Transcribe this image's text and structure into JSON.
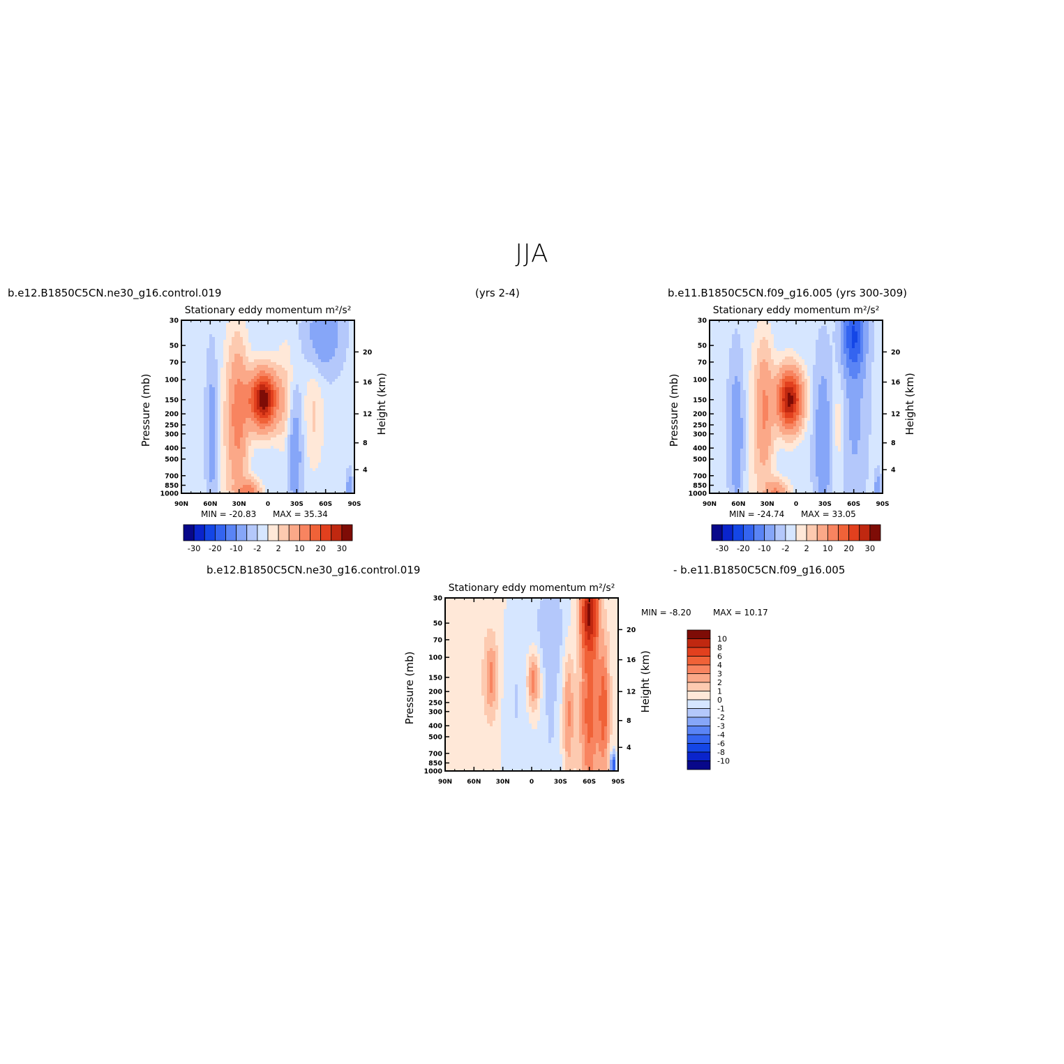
{
  "page": {
    "title": "JJA",
    "case1_label": "b.e12.B1850C5CN.ne30_g16.control.019",
    "case1_years": "(yrs 2-4)",
    "case2_label": "b.e11.B1850C5CN.f09_g16.005 (yrs 300-309)",
    "diff_label_left": "b.e12.B1850C5CN.ne30_g16.control.019",
    "diff_label_right": "- b.e11.B1850C5CN.f09_g16.005"
  },
  "colors": {
    "palette": [
      "#08088a",
      "#0a24cc",
      "#1446e6",
      "#3464f0",
      "#5a84f5",
      "#86a6f8",
      "#b4c8fb",
      "#d6e6ff",
      "#ffe8d8",
      "#fdcab0",
      "#fba888",
      "#f88460",
      "#f06238",
      "#e2401e",
      "#c02810",
      "#7e0c06"
    ]
  },
  "chart_data": [
    {
      "type": "heatmap",
      "name": "panel-left",
      "title": "Stationary eddy momentum",
      "units": "m²/s²",
      "xlabel": "",
      "ylabel": "Pressure (mb)",
      "y2label": "Height (km)",
      "xticks": [
        "90N",
        "60N",
        "30N",
        "0",
        "30S",
        "60S",
        "90S"
      ],
      "yticks": [
        30,
        50,
        70,
        100,
        150,
        200,
        250,
        300,
        400,
        500,
        700,
        850,
        1000
      ],
      "y2ticks": [
        4,
        8,
        12,
        16,
        20
      ],
      "ylim": [
        1000,
        30
      ],
      "ylog": true,
      "min": -20.83,
      "max": 35.34,
      "min_text": "MIN =  -20.83",
      "max_text": "MAX =   35.34",
      "levels": [
        -30,
        -25,
        -20,
        -15,
        -10,
        -5,
        -2,
        0,
        2,
        5,
        10,
        15,
        20,
        25,
        30
      ],
      "colorbar_labels": [
        "-30",
        "-20",
        "-10",
        "-2",
        "2",
        "10",
        "20",
        "30"
      ],
      "features": [
        {
          "lat": 5,
          "p": 150,
          "value": 35.3,
          "sx": 10,
          "sy": 0.38
        },
        {
          "lat": 31,
          "p": 200,
          "value": 12,
          "sx": 7,
          "sy": 0.95
        },
        {
          "lat": -48,
          "p": 200,
          "value": 3.5,
          "sx": 7,
          "sy": 0.8
        },
        {
          "lat": 20,
          "p": 1000,
          "value": 14,
          "sx": 8,
          "sy": 0.18
        },
        {
          "lat": 38,
          "p": 400,
          "value": 2.5,
          "sx": 10,
          "sy": 1.6
        },
        {
          "lat": -20,
          "p": 150,
          "value": 4,
          "sx": 8,
          "sy": 0.8
        },
        {
          "lat": 58,
          "p": 300,
          "value": -7,
          "sx": 4,
          "sy": 1.0
        },
        {
          "lat": -28,
          "p": 400,
          "value": -8,
          "sx": 5,
          "sy": 0.9
        },
        {
          "lat": -58,
          "p": 40,
          "value": -8,
          "sx": 12,
          "sy": 0.5
        },
        {
          "lat": -85,
          "p": 900,
          "value": -9,
          "sx": 2,
          "sy": 0.2
        }
      ],
      "background": -1.2
    },
    {
      "type": "heatmap",
      "name": "panel-right",
      "title": "Stationary eddy momentum",
      "units": "m²/s²",
      "xlabel": "",
      "ylabel": "Pressure (mb)",
      "y2label": "Height (km)",
      "xticks": [
        "90N",
        "60N",
        "30N",
        "0",
        "30S",
        "60S",
        "90S"
      ],
      "yticks": [
        30,
        50,
        70,
        100,
        150,
        200,
        250,
        300,
        400,
        500,
        700,
        850,
        1000
      ],
      "y2ticks": [
        4,
        8,
        12,
        16,
        20
      ],
      "ylim": [
        1000,
        30
      ],
      "ylog": true,
      "min": -24.74,
      "max": 33.05,
      "min_text": "MIN =  -24.74",
      "max_text": "MAX =   33.05",
      "levels": [
        -30,
        -25,
        -20,
        -15,
        -10,
        -5,
        -2,
        0,
        2,
        5,
        10,
        15,
        20,
        25,
        30
      ],
      "colorbar_labels": [
        "-30",
        "-20",
        "-10",
        "-2",
        "2",
        "10",
        "20",
        "30"
      ],
      "features": [
        {
          "lat": 7,
          "p": 150,
          "value": 33,
          "sx": 9,
          "sy": 0.4
        },
        {
          "lat": 33,
          "p": 180,
          "value": 10,
          "sx": 6,
          "sy": 0.85
        },
        {
          "lat": -45,
          "p": 250,
          "value": 3,
          "sx": 6,
          "sy": 0.8
        },
        {
          "lat": 20,
          "p": 1000,
          "value": 12,
          "sx": 8,
          "sy": 0.18
        },
        {
          "lat": 38,
          "p": 400,
          "value": 2.5,
          "sx": 10,
          "sy": 1.6
        },
        {
          "lat": 62,
          "p": 300,
          "value": -8,
          "sx": 5,
          "sy": 1.0
        },
        {
          "lat": -28,
          "p": 350,
          "value": -8,
          "sx": 6,
          "sy": 1.1
        },
        {
          "lat": -60,
          "p": 40,
          "value": -18,
          "sx": 8,
          "sy": 0.55
        },
        {
          "lat": -60,
          "p": 200,
          "value": -5,
          "sx": 9,
          "sy": 1.2
        },
        {
          "lat": -85,
          "p": 900,
          "value": -9,
          "sx": 2,
          "sy": 0.2
        }
      ],
      "background": -1.2
    },
    {
      "type": "heatmap",
      "name": "panel-diff",
      "title": "Stationary eddy momentum",
      "units": "m²/s²",
      "xlabel": "",
      "ylabel": "Pressure (mb)",
      "y2label": "Height (km)",
      "xticks": [
        "90N",
        "60N",
        "30N",
        "0",
        "30S",
        "60S",
        "90S"
      ],
      "yticks": [
        30,
        50,
        70,
        100,
        150,
        200,
        250,
        300,
        400,
        500,
        700,
        850,
        1000
      ],
      "y2ticks": [
        4,
        8,
        12,
        16,
        20
      ],
      "ylim": [
        1000,
        30
      ],
      "ylog": true,
      "min": -8.2,
      "max": 10.17,
      "min_text": "MIN =   -8.20",
      "max_text": "MAX =   10.17",
      "levels": [
        -10,
        -8,
        -6,
        -4,
        -3,
        -2,
        -1,
        0,
        1,
        2,
        3,
        4,
        6,
        8,
        10
      ],
      "colorbar_labels": [
        "10",
        "8",
        "6",
        "4",
        "3",
        "2",
        "1",
        "0",
        "-1",
        "-2",
        "-3",
        "-4",
        "-6",
        "-8",
        "-10"
      ],
      "features": [
        {
          "lat": -60,
          "p": 40,
          "value": 9,
          "sx": 6,
          "sy": 0.55
        },
        {
          "lat": -60,
          "p": 300,
          "value": 4,
          "sx": 7,
          "sy": 1.3
        },
        {
          "lat": -75,
          "p": 280,
          "value": 4,
          "sx": 4,
          "sy": 0.9
        },
        {
          "lat": -38,
          "p": 300,
          "value": 3,
          "sx": 4,
          "sy": 0.9
        },
        {
          "lat": -2,
          "p": 160,
          "value": 4,
          "sx": 5,
          "sy": 0.45
        },
        {
          "lat": 42,
          "p": 150,
          "value": 3,
          "sx": 5,
          "sy": 0.55
        },
        {
          "lat": 15,
          "p": 280,
          "value": -1.5,
          "sx": 12,
          "sy": 1.8
        },
        {
          "lat": -20,
          "p": 400,
          "value": -1.5,
          "sx": 10,
          "sy": 1.8
        },
        {
          "lat": -20,
          "p": 50,
          "value": -1.5,
          "sx": 18,
          "sy": 0.8
        },
        {
          "lat": -85,
          "p": 900,
          "value": -6,
          "sx": 2,
          "sy": 0.2
        }
      ],
      "background": 0.5
    }
  ]
}
